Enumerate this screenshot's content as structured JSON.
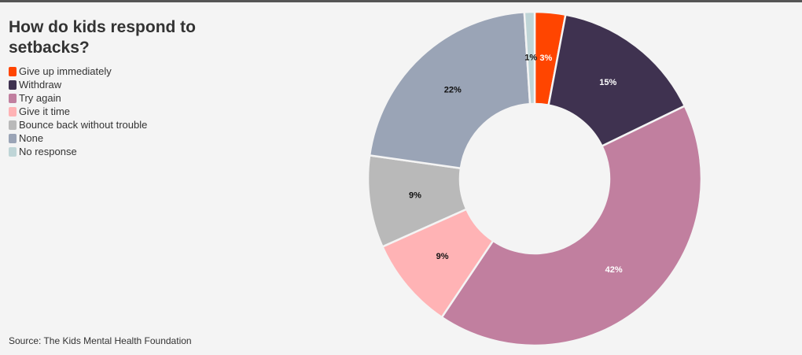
{
  "title": "How do kids respond to setbacks?",
  "source": "Source: The Kids Mental Health Foundation",
  "legend": [
    {
      "label": "Give up immediately",
      "color": "#ff4500"
    },
    {
      "label": "Withdraw",
      "color": "#3f3250"
    },
    {
      "label": "Try again",
      "color": "#c17f9f"
    },
    {
      "label": "Give it time",
      "color": "#ffb3b5"
    },
    {
      "label": "Bounce back without trouble",
      "color": "#b9b9b9"
    },
    {
      "label": "None",
      "color": "#9aa4b6"
    },
    {
      "label": "No response",
      "color": "#bfd5d7"
    }
  ],
  "chart_data": {
    "type": "pie",
    "donut": true,
    "title": "How do kids respond to setbacks?",
    "legend_position": "top-left",
    "slices": [
      {
        "label": "Give up immediately",
        "value": 3,
        "display": "3%",
        "color": "#ff4500",
        "label_color": "#ffffff"
      },
      {
        "label": "Withdraw",
        "value": 15,
        "display": "15%",
        "color": "#3f3250",
        "label_color": "#ffffff"
      },
      {
        "label": "Try again",
        "value": 42,
        "display": "42%",
        "color": "#c17f9f",
        "label_color": "#ffffff"
      },
      {
        "label": "Give it time",
        "value": 9,
        "display": "9%",
        "color": "#ffb3b5",
        "label_color": "#111111"
      },
      {
        "label": "Bounce back without trouble",
        "value": 9,
        "display": "9%",
        "color": "#b9b9b9",
        "label_color": "#111111"
      },
      {
        "label": "None",
        "value": 22,
        "display": "22%",
        "color": "#9aa4b6",
        "label_color": "#111111"
      },
      {
        "label": "No response",
        "value": 1,
        "display": "1%",
        "color": "#bfd5d7",
        "label_color": "#111111"
      }
    ]
  }
}
